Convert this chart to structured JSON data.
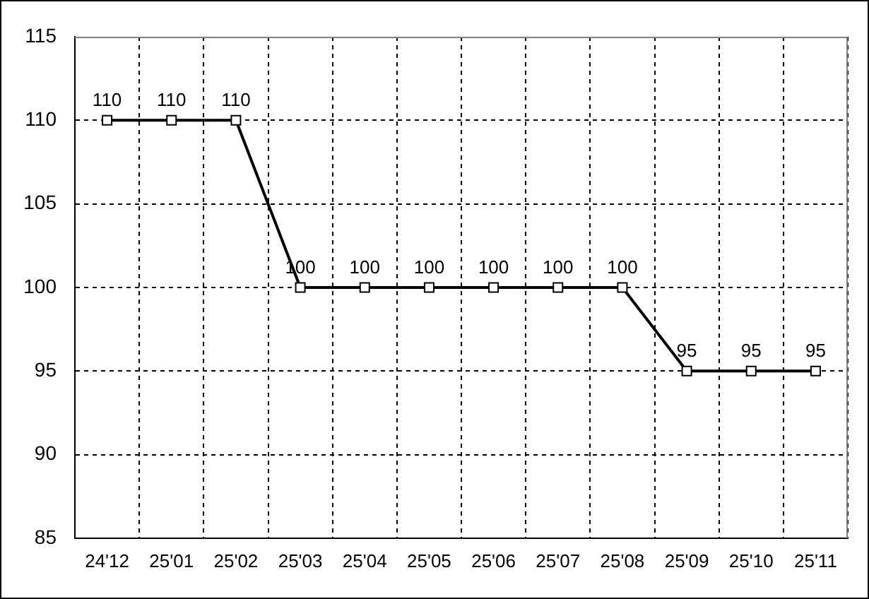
{
  "chart_data": {
    "type": "line",
    "categories": [
      "24'12",
      "25'01",
      "25'02",
      "25'03",
      "25'04",
      "25'05",
      "25'06",
      "25'07",
      "25'08",
      "25'09",
      "25'10",
      "25'11"
    ],
    "values": [
      110,
      110,
      110,
      100,
      100,
      100,
      100,
      100,
      100,
      95,
      95,
      95
    ],
    "color": "#000000",
    "ylim": [
      85,
      115
    ],
    "yticks": [
      85,
      90,
      95,
      100,
      105,
      110,
      115
    ],
    "grid": true,
    "legend": false,
    "marker": "square",
    "line_style": "solid",
    "data_labels": true
  }
}
